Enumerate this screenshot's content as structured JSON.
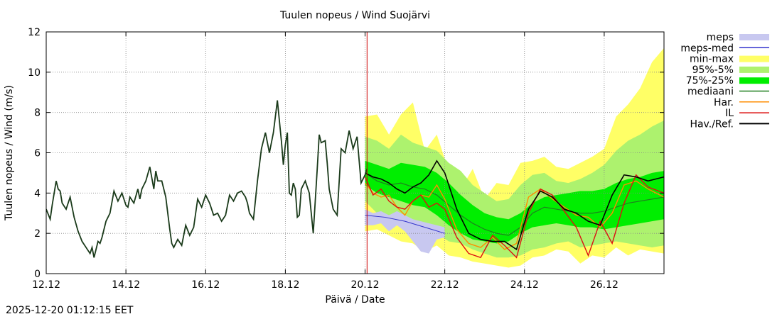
{
  "chart_data": {
    "type": "line",
    "title": "Tuulen nopeus / Wind  Suojärvi",
    "xlabel": "Päivä / Date",
    "ylabel": "Tuulen nopeus / Wind (m/s)",
    "ylim": [
      0,
      12
    ],
    "yticks": [
      0,
      2,
      4,
      6,
      8,
      10,
      12
    ],
    "xlim": [
      0,
      15.5
    ],
    "xticks": [
      {
        "x": 0,
        "label": "12.12"
      },
      {
        "x": 2,
        "label": "14.12"
      },
      {
        "x": 4,
        "label": "16.12"
      },
      {
        "x": 6,
        "label": "18.12"
      },
      {
        "x": 8,
        "label": "20.12"
      },
      {
        "x": 10,
        "label": "22.12"
      },
      {
        "x": 12,
        "label": "24.12"
      },
      {
        "x": 14,
        "label": "26.12"
      }
    ],
    "grid": true,
    "now_marker_x": 8.05,
    "legend_position": "right",
    "legend": [
      {
        "label": "meps",
        "kind": "band",
        "color": "#c8c8f0"
      },
      {
        "label": "meps-med",
        "kind": "line",
        "color": "#3333cc"
      },
      {
        "label": "min-max",
        "kind": "band",
        "color": "#ffff66"
      },
      {
        "label": "95%-5%",
        "kind": "band",
        "color": "#adf26e"
      },
      {
        "label": "75%-25%",
        "kind": "band",
        "color": "#00ee00"
      },
      {
        "label": "mediaani",
        "kind": "line",
        "color": "#1f7f1f"
      },
      {
        "label": "Har.",
        "kind": "line",
        "color": "#ff8c00"
      },
      {
        "label": "IL",
        "kind": "line",
        "color": "#dd1111"
      },
      {
        "label": "Hav./Ref.",
        "kind": "line",
        "color": "#000000"
      }
    ],
    "series": {
      "observed": {
        "x": [
          0,
          0.1,
          0.15,
          0.25,
          0.3,
          0.35,
          0.4,
          0.5,
          0.6,
          0.7,
          0.8,
          0.9,
          1.0,
          1.1,
          1.15,
          1.2,
          1.3,
          1.35,
          1.4,
          1.45,
          1.5,
          1.6,
          1.7,
          1.8,
          1.9,
          2.0,
          2.05,
          2.1,
          2.2,
          2.3,
          2.35,
          2.4,
          2.5,
          2.6,
          2.7,
          2.75,
          2.8,
          2.9,
          3.0,
          3.1,
          3.15,
          3.2,
          3.3,
          3.4,
          3.5,
          3.6,
          3.7,
          3.8,
          3.9,
          4.0,
          4.1,
          4.2,
          4.3,
          4.4,
          4.5,
          4.6,
          4.7,
          4.8,
          4.9,
          5.0,
          5.05,
          5.1,
          5.2,
          5.3,
          5.4,
          5.5,
          5.6,
          5.65,
          5.7,
          5.8,
          5.9,
          5.95,
          6.0,
          6.05,
          6.1,
          6.15,
          6.2,
          6.25,
          6.3,
          6.35,
          6.4,
          6.5,
          6.6,
          6.7,
          6.8,
          6.85,
          6.9,
          7.0,
          7.05,
          7.1,
          7.2,
          7.3,
          7.4,
          7.5,
          7.6,
          7.7,
          7.8,
          7.9,
          8.0,
          8.05
        ],
        "y": [
          3.2,
          2.7,
          3.4,
          4.6,
          4.2,
          4.1,
          3.5,
          3.2,
          3.8,
          2.8,
          2.1,
          1.6,
          1.3,
          1.0,
          1.3,
          0.8,
          1.6,
          1.5,
          1.8,
          2.2,
          2.6,
          3.0,
          4.1,
          3.6,
          4.0,
          3.4,
          3.3,
          3.8,
          3.5,
          4.2,
          3.7,
          4.2,
          4.6,
          5.3,
          4.2,
          5.1,
          4.6,
          4.6,
          3.8,
          2.2,
          1.5,
          1.3,
          1.7,
          1.4,
          2.4,
          1.9,
          2.3,
          3.7,
          3.3,
          3.9,
          3.5,
          2.9,
          3.0,
          2.6,
          2.9,
          3.9,
          3.6,
          4.0,
          4.1,
          3.8,
          3.5,
          3.0,
          2.7,
          4.6,
          6.2,
          7.0,
          6.0,
          6.5,
          7.0,
          8.6,
          6.6,
          5.4,
          6.4,
          7.0,
          4.0,
          3.9,
          4.5,
          4.2,
          2.8,
          2.9,
          4.2,
          4.6,
          4.0,
          2.0,
          5.2,
          6.9,
          6.5,
          6.6,
          5.5,
          4.2,
          3.2,
          2.9,
          6.2,
          6.0,
          7.1,
          6.2,
          6.8,
          4.5,
          4.9,
          5.2
        ]
      },
      "minmax": {
        "x": [
          8.0,
          8.3,
          8.6,
          8.9,
          9.2,
          9.5,
          9.8,
          10.1,
          10.4,
          10.7,
          11.0,
          11.3,
          11.6,
          11.9,
          12.2,
          12.5,
          12.8,
          13.1,
          13.4,
          13.7,
          14.0,
          14.3,
          14.6,
          14.9,
          15.2,
          15.5
        ],
        "hi": [
          7.8,
          7.9,
          6.9,
          7.9,
          8.5,
          6.1,
          6.9,
          5.1,
          4.2,
          5.2,
          3.7,
          4.5,
          4.4,
          5.5,
          5.6,
          5.8,
          5.3,
          5.2,
          5.5,
          5.8,
          6.2,
          7.8,
          8.4,
          9.2,
          10.5,
          11.2
        ],
        "lo": [
          2.1,
          2.2,
          1.9,
          1.6,
          1.5,
          1.1,
          1.4,
          0.9,
          0.8,
          0.6,
          0.5,
          0.4,
          0.3,
          0.4,
          0.8,
          0.9,
          1.2,
          1.1,
          0.5,
          0.9,
          0.8,
          1.3,
          0.9,
          1.2,
          1.1,
          1.0
        ]
      },
      "p95_5": {
        "x": [
          8.0,
          8.3,
          8.6,
          8.9,
          9.2,
          9.5,
          9.8,
          10.1,
          10.4,
          10.7,
          11.0,
          11.3,
          11.6,
          11.9,
          12.2,
          12.5,
          12.8,
          13.1,
          13.4,
          13.7,
          14.0,
          14.3,
          14.6,
          14.9,
          15.2,
          15.5
        ],
        "hi": [
          6.8,
          6.6,
          6.2,
          6.9,
          6.5,
          6.3,
          6.1,
          5.5,
          5.1,
          4.4,
          4.0,
          3.6,
          3.7,
          4.4,
          4.9,
          5.0,
          4.6,
          4.5,
          4.7,
          5.0,
          5.4,
          6.1,
          6.6,
          6.9,
          7.3,
          7.6
        ],
        "lo": [
          3.6,
          3.0,
          2.9,
          2.7,
          2.6,
          2.4,
          2.0,
          1.6,
          1.5,
          1.2,
          1.0,
          0.8,
          0.8,
          0.9,
          1.2,
          1.3,
          1.5,
          1.6,
          1.3,
          1.4,
          1.5,
          1.6,
          1.5,
          1.4,
          1.3,
          1.4
        ]
      },
      "p75_25": {
        "x": [
          8.0,
          8.3,
          8.6,
          8.9,
          9.2,
          9.5,
          9.8,
          10.1,
          10.4,
          10.7,
          11.0,
          11.3,
          11.6,
          11.9,
          12.2,
          12.5,
          12.8,
          13.1,
          13.4,
          13.7,
          14.0,
          14.3,
          14.6,
          14.9,
          15.2,
          15.5
        ],
        "hi": [
          5.6,
          5.4,
          5.2,
          5.5,
          5.4,
          5.3,
          5.0,
          4.5,
          3.9,
          3.4,
          3.0,
          2.8,
          2.7,
          3.0,
          3.5,
          3.8,
          3.9,
          4.0,
          4.1,
          4.1,
          4.2,
          4.5,
          4.7,
          4.8,
          5.0,
          5.1
        ],
        "lo": [
          4.4,
          4.0,
          3.8,
          3.6,
          3.4,
          3.3,
          2.9,
          2.4,
          2.0,
          1.7,
          1.6,
          1.5,
          1.6,
          2.0,
          2.3,
          2.4,
          2.5,
          2.4,
          2.3,
          2.3,
          2.2,
          2.3,
          2.4,
          2.5,
          2.6,
          2.7
        ]
      },
      "meps_band": {
        "x": [
          8.0,
          8.2,
          8.4,
          8.6,
          8.8,
          9.0,
          9.2,
          9.4,
          9.6,
          9.8,
          10.0
        ],
        "hi": [
          3.2,
          3.0,
          3.1,
          2.9,
          3.1,
          2.9,
          2.7,
          2.6,
          2.5,
          2.4,
          2.3
        ],
        "lo": [
          2.4,
          2.4,
          2.5,
          2.1,
          2.4,
          2.1,
          1.6,
          1.1,
          1.0,
          1.7,
          1.8
        ]
      },
      "meps_med": {
        "x": [
          8.0,
          8.5,
          9.0,
          9.5,
          10.0
        ],
        "y": [
          2.9,
          2.8,
          2.6,
          2.3,
          2.0
        ]
      },
      "mediaani": {
        "x": [
          8.0,
          8.3,
          8.6,
          8.9,
          9.2,
          9.5,
          9.8,
          10.1,
          10.4,
          10.7,
          11.0,
          11.3,
          11.6,
          11.9,
          12.2,
          12.5,
          12.8,
          13.1,
          13.4,
          13.7,
          14.0,
          14.3,
          14.6,
          14.9,
          15.2,
          15.5
        ],
        "y": [
          5.0,
          4.6,
          4.4,
          4.5,
          4.3,
          4.2,
          3.9,
          3.4,
          2.9,
          2.5,
          2.2,
          2.0,
          1.9,
          2.3,
          3.0,
          3.3,
          3.2,
          3.1,
          3.0,
          3.0,
          3.1,
          3.3,
          3.5,
          3.6,
          3.7,
          3.8
        ]
      },
      "harmonie": {
        "x": [
          8.0,
          8.2,
          8.4,
          8.6,
          8.8,
          9.0,
          9.2,
          9.4,
          9.6,
          9.8,
          10.0,
          10.3,
          10.6,
          10.9,
          11.2,
          11.5,
          11.8,
          12.1,
          12.4,
          12.7,
          13.0,
          13.3,
          13.6,
          13.9,
          14.2,
          14.5,
          14.8,
          15.1,
          15.5
        ],
        "y": [
          4.5,
          4.0,
          3.8,
          3.9,
          3.3,
          2.9,
          3.6,
          3.9,
          3.8,
          4.4,
          3.7,
          2.2,
          1.5,
          1.3,
          1.8,
          1.2,
          1.5,
          3.8,
          4.2,
          3.7,
          3.3,
          2.9,
          2.8,
          2.3,
          3.0,
          4.4,
          4.6,
          4.2,
          3.8
        ]
      },
      "il": {
        "x": [
          8.0,
          8.2,
          8.4,
          8.6,
          8.8,
          9.0,
          9.2,
          9.4,
          9.6,
          9.8,
          10.0,
          10.3,
          10.6,
          10.9,
          11.2,
          11.5,
          11.8,
          12.1,
          12.4,
          12.7,
          13.0,
          13.3,
          13.6,
          13.9,
          14.2,
          14.5,
          14.8,
          15.1,
          15.5
        ],
        "y": [
          4.8,
          3.9,
          4.2,
          3.6,
          3.3,
          3.2,
          3.6,
          3.9,
          3.3,
          3.5,
          3.2,
          1.8,
          1.0,
          0.8,
          1.9,
          1.4,
          0.8,
          3.0,
          4.2,
          3.9,
          3.1,
          2.3,
          0.9,
          2.6,
          1.5,
          3.5,
          4.9,
          4.3,
          4.0
        ]
      },
      "forecast_ref": {
        "x": [
          8.0,
          8.2,
          8.4,
          8.6,
          8.8,
          9.0,
          9.2,
          9.4,
          9.6,
          9.8,
          10.0,
          10.3,
          10.6,
          10.9,
          11.2,
          11.5,
          11.8,
          12.1,
          12.4,
          12.7,
          13.0,
          13.3,
          13.6,
          13.9,
          14.2,
          14.5,
          14.8,
          15.1,
          15.5
        ],
        "y": [
          5.0,
          4.8,
          4.7,
          4.5,
          4.2,
          4.0,
          4.3,
          4.5,
          4.9,
          5.6,
          5.0,
          3.2,
          2.0,
          1.7,
          1.6,
          1.6,
          1.2,
          3.2,
          4.1,
          3.8,
          3.2,
          3.0,
          2.6,
          2.4,
          3.9,
          4.9,
          4.8,
          4.6,
          4.8
        ]
      }
    }
  },
  "footer": {
    "timestamp": "2025-12-20 01:12:15 EET"
  }
}
